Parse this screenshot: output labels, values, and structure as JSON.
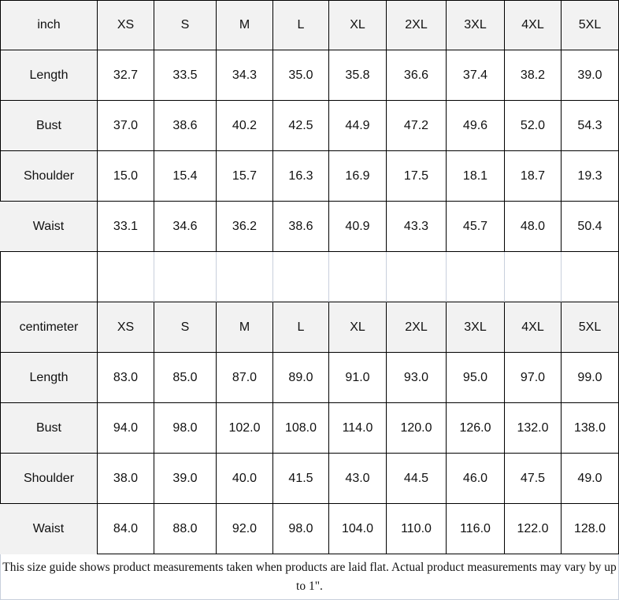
{
  "inch_table": {
    "header": [
      "inch",
      "XS",
      "S",
      "M",
      "L",
      "XL",
      "2XL",
      "3XL",
      "4XL",
      "5XL"
    ],
    "rows": [
      [
        "Length",
        "32.7",
        "33.5",
        "34.3",
        "35.0",
        "35.8",
        "36.6",
        "37.4",
        "38.2",
        "39.0"
      ],
      [
        "Bust",
        "37.0",
        "38.6",
        "40.2",
        "42.5",
        "44.9",
        "47.2",
        "49.6",
        "52.0",
        "54.3"
      ],
      [
        "Shoulder",
        "15.0",
        "15.4",
        "15.7",
        "16.3",
        "16.9",
        "17.5",
        "18.1",
        "18.7",
        "19.3"
      ],
      [
        "Waist",
        "33.1",
        "34.6",
        "36.2",
        "38.6",
        "40.9",
        "43.3",
        "45.7",
        "48.0",
        "50.4"
      ]
    ]
  },
  "cm_table": {
    "header": [
      "centimeter",
      "XS",
      "S",
      "M",
      "L",
      "XL",
      "2XL",
      "3XL",
      "4XL",
      "5XL"
    ],
    "rows": [
      [
        "Length",
        "83.0",
        "85.0",
        "87.0",
        "89.0",
        "91.0",
        "93.0",
        "95.0",
        "97.0",
        "99.0"
      ],
      [
        "Bust",
        "94.0",
        "98.0",
        "102.0",
        "108.0",
        "114.0",
        "120.0",
        "126.0",
        "132.0",
        "138.0"
      ],
      [
        "Shoulder",
        "38.0",
        "39.0",
        "40.0",
        "41.5",
        "43.0",
        "44.5",
        "46.0",
        "47.5",
        "49.0"
      ],
      [
        "Waist",
        "84.0",
        "88.0",
        "92.0",
        "98.0",
        "104.0",
        "110.0",
        "116.0",
        "122.0",
        "128.0"
      ]
    ]
  },
  "footer": {
    "note": "This size guide shows product measurements taken when products are laid flat. Actual product measurements may vary by up to 1\"."
  },
  "colors": {
    "header_bg": "#f2f2f2",
    "border": "#000000",
    "footer_border": "#c8cfdc"
  }
}
